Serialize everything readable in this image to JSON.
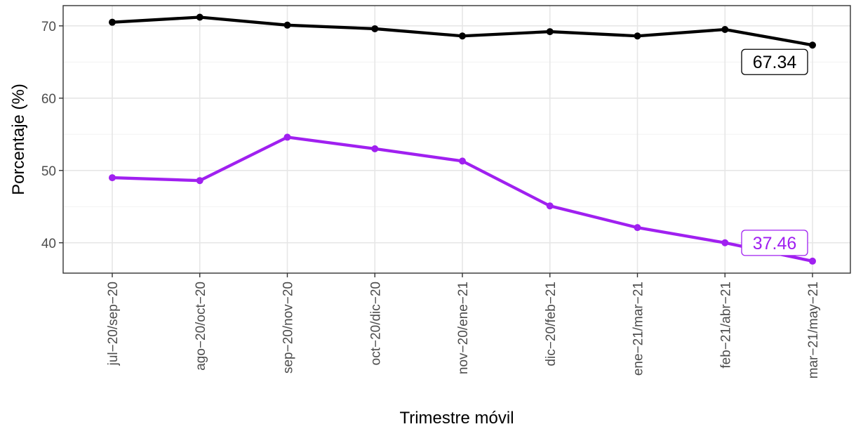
{
  "chart_data": {
    "type": "line",
    "title": "",
    "xlabel": "Trimestre móvil",
    "ylabel": "Porcentaje (%)",
    "categories": [
      "jul−20/sep−20",
      "ago−20/oct−20",
      "sep−20/nov−20",
      "oct−20/dic−20",
      "nov−20/ene−21",
      "dic−20/feb−21",
      "ene−21/mar−21",
      "feb−21/abr−21",
      "mar−21/may−21"
    ],
    "ylim": [
      35.8,
      72.8
    ],
    "yticks": [
      40,
      50,
      60,
      70
    ],
    "grid": true,
    "legend": "none",
    "series": [
      {
        "color": "#000000",
        "values": [
          70.5,
          71.2,
          70.1,
          69.6,
          68.6,
          69.2,
          68.6,
          69.5,
          67.34
        ],
        "end_label": "67.34"
      },
      {
        "color": "#a020f0",
        "values": [
          49.0,
          48.6,
          54.6,
          53.0,
          51.3,
          45.1,
          42.1,
          40.0,
          37.46
        ],
        "end_label": "37.46"
      }
    ]
  }
}
